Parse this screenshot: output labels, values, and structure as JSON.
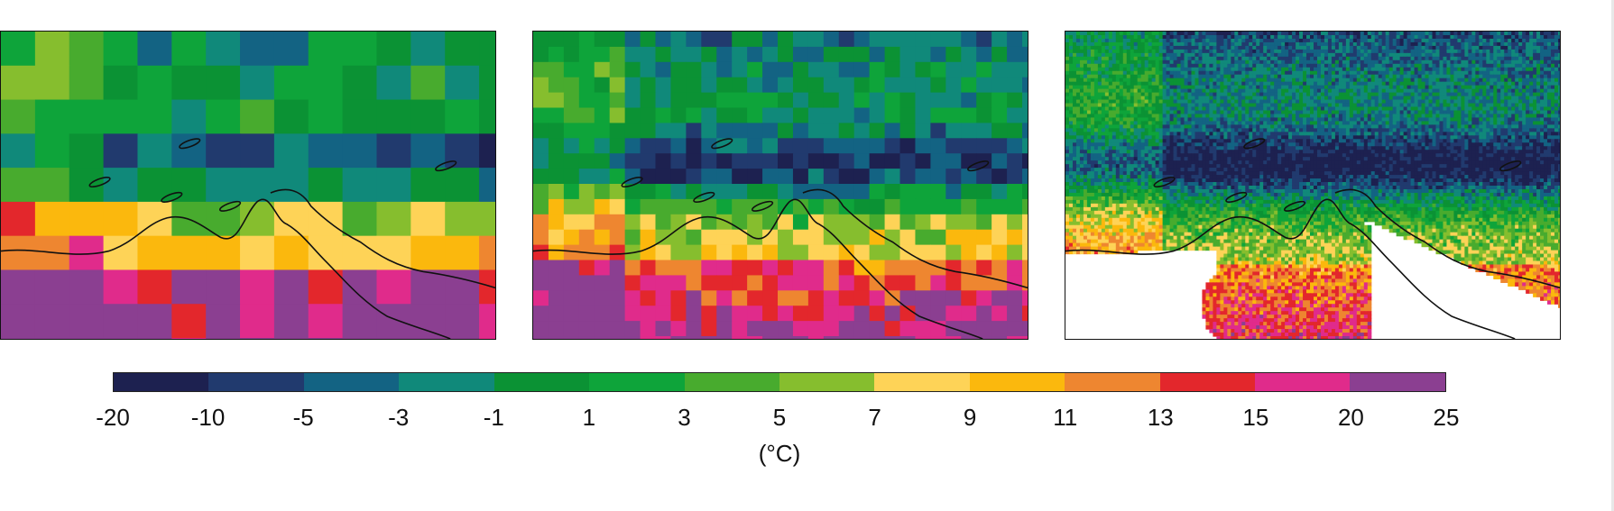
{
  "panels": [
    {
      "id": "p1",
      "name": "map-panel-1",
      "seed": 7,
      "cell": 38,
      "detail": "coarse",
      "offset": 0.0
    },
    {
      "id": "p2",
      "name": "map-panel-2",
      "seed": 21,
      "cell": 17,
      "detail": "medium",
      "offset": -0.6
    },
    {
      "id": "p3",
      "name": "map-panel-3",
      "seed": 33,
      "cell": 4,
      "detail": "fine",
      "offset": -1.6
    }
  ],
  "colorbar": {
    "colors": [
      "#1d2150",
      "#213a6e",
      "#136383",
      "#10897a",
      "#0b9234",
      "#0ea43a",
      "#48ab2e",
      "#86be2e",
      "#fed357",
      "#fbb80d",
      "#ee8630",
      "#e3272c",
      "#e02b8b",
      "#8b3f91"
    ],
    "ticks": [
      "-20",
      "-10",
      "-5",
      "-3",
      "-1",
      "1",
      "3",
      "5",
      "7",
      "9",
      "11",
      "13",
      "15",
      "20",
      "25"
    ],
    "unit": "(°C)"
  }
}
